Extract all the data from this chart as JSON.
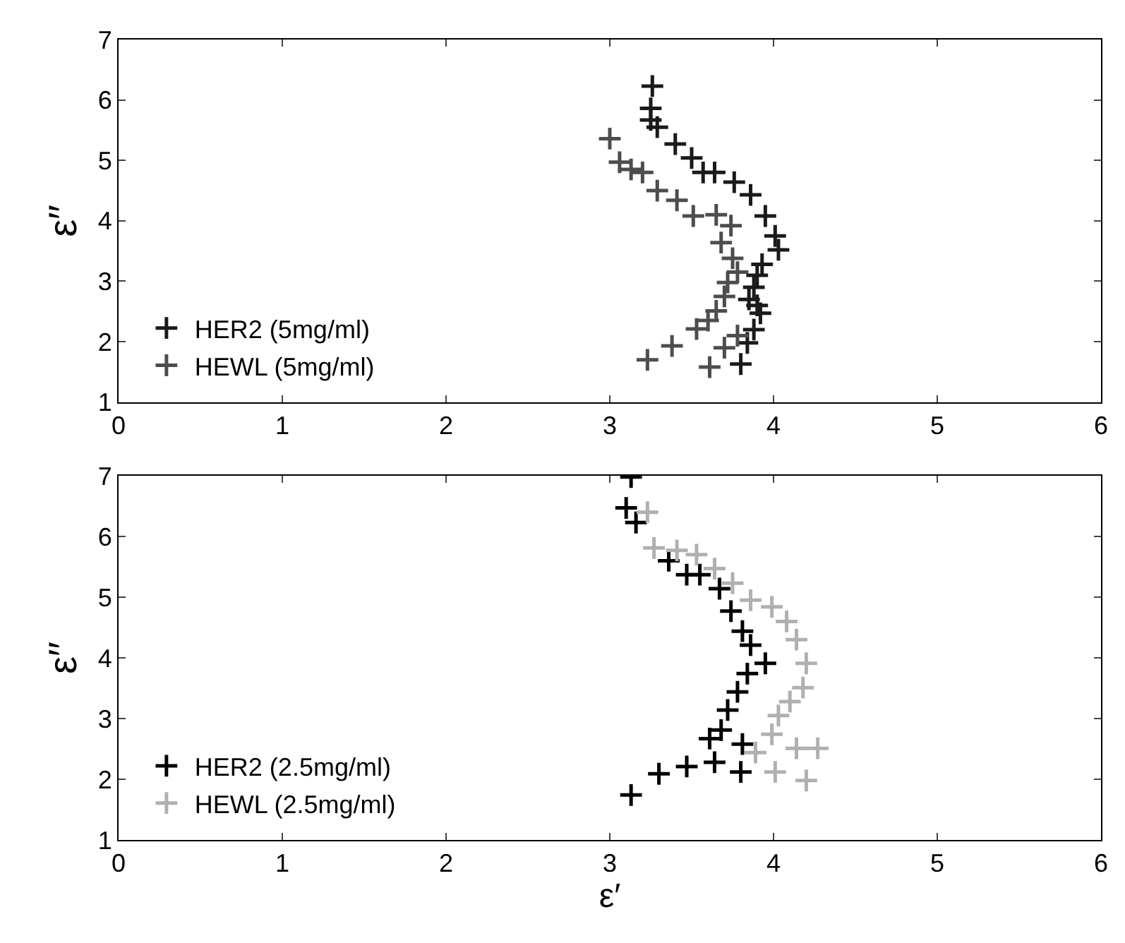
{
  "chart_data": [
    {
      "type": "scatter",
      "ylabel": "ε′′",
      "xlim": [
        0,
        6
      ],
      "ylim": [
        1,
        7
      ],
      "xticks": [
        0,
        1,
        2,
        3,
        4,
        5,
        6
      ],
      "yticks": [
        1,
        2,
        3,
        4,
        5,
        6,
        7
      ],
      "legend": "bottom left",
      "marker": "cross",
      "series": [
        {
          "name": "HER2 (5mg/ml)",
          "color": "#1a1a1a",
          "x": [
            3.26,
            3.25,
            3.25,
            3.29,
            3.4,
            3.5,
            3.57,
            3.64,
            3.76,
            3.86,
            3.95,
            4.01,
            4.03,
            3.93,
            3.9,
            3.88,
            3.85,
            3.9,
            3.92,
            3.88,
            3.84,
            3.8
          ],
          "values": [
            6.23,
            5.86,
            5.67,
            5.55,
            5.27,
            5.04,
            4.8,
            4.8,
            4.64,
            4.43,
            4.08,
            3.75,
            3.52,
            3.28,
            3.1,
            2.9,
            2.7,
            2.6,
            2.47,
            2.2,
            1.98,
            1.63
          ]
        },
        {
          "name": "HEWL (5mg/ml)",
          "color": "#4d4d4d",
          "x": [
            3.0,
            3.06,
            3.13,
            3.2,
            3.29,
            3.41,
            3.51,
            3.65,
            3.74,
            3.68,
            3.75,
            3.78,
            3.72,
            3.7,
            3.65,
            3.6,
            3.53,
            3.38,
            3.23,
            3.61,
            3.7,
            3.78
          ],
          "values": [
            5.36,
            4.97,
            4.85,
            4.8,
            4.5,
            4.34,
            4.08,
            4.1,
            3.92,
            3.64,
            3.38,
            3.15,
            2.98,
            2.75,
            2.51,
            2.35,
            2.21,
            1.93,
            1.7,
            1.58,
            1.9,
            2.1
          ]
        }
      ]
    },
    {
      "type": "scatter",
      "xlabel": "ε′",
      "ylabel": "ε′′",
      "xlim": [
        0,
        6
      ],
      "ylim": [
        1,
        7
      ],
      "xticks": [
        0,
        1,
        2,
        3,
        4,
        5,
        6
      ],
      "yticks": [
        1,
        2,
        3,
        4,
        5,
        6,
        7
      ],
      "legend": "bottom left",
      "marker": "cross",
      "series": [
        {
          "name": "HER2 (2.5mg/ml)",
          "color": "#000000",
          "x": [
            3.13,
            3.1,
            3.16,
            3.36,
            3.47,
            3.55,
            3.67,
            3.74,
            3.81,
            3.86,
            3.95,
            3.84,
            3.78,
            3.72,
            3.68,
            3.61,
            3.81,
            3.64,
            3.8,
            3.47,
            3.3,
            3.13
          ],
          "values": [
            6.98,
            6.47,
            6.23,
            5.6,
            5.37,
            5.37,
            5.14,
            4.77,
            4.44,
            4.21,
            3.91,
            3.74,
            3.44,
            3.14,
            2.81,
            2.67,
            2.58,
            2.28,
            2.12,
            2.21,
            2.09,
            1.74
          ]
        },
        {
          "name": "HEWL (2.5mg/ml)",
          "color": "#b0b0b0",
          "x": [
            3.23,
            3.27,
            3.41,
            3.53,
            3.64,
            3.75,
            3.86,
            3.99,
            4.08,
            4.14,
            4.2,
            4.18,
            4.1,
            4.03,
            3.99,
            4.14,
            4.27,
            4.2,
            4.01,
            3.89
          ],
          "values": [
            6.4,
            5.81,
            5.77,
            5.7,
            5.47,
            5.23,
            4.95,
            4.84,
            4.6,
            4.3,
            3.91,
            3.51,
            3.28,
            3.05,
            2.74,
            2.51,
            2.51,
            1.98,
            2.12,
            2.44
          ]
        }
      ]
    }
  ]
}
